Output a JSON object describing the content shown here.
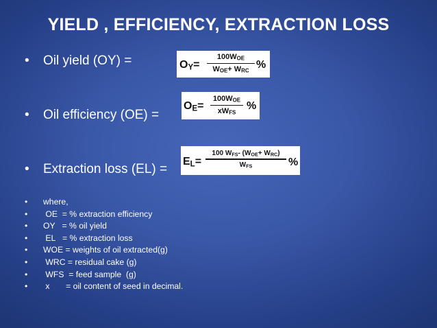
{
  "title": "YIELD , EFFICIENCY, EXTRACTION LOSS",
  "bullets": [
    {
      "label": "Oil yield (OY) ="
    },
    {
      "label": "Oil efficiency (OE) ="
    },
    {
      "label": "Extraction loss (EL) ="
    }
  ],
  "formulas": {
    "oy": {
      "lhs_main": "O",
      "lhs_sub": "Y",
      "eq": "=",
      "num_main": "100W",
      "num_sub": "OE",
      "den_a": "W",
      "den_a_sub": "OE",
      "den_plus": "+ W",
      "den_b_sub": "RC",
      "pct": "%"
    },
    "oe": {
      "lhs_main": "O",
      "lhs_sub": "E",
      "eq": "=",
      "num_main": "100W",
      "num_sub": "OE",
      "den_main": "xW",
      "den_sub": "FS",
      "pct": "%"
    },
    "el": {
      "lhs_main": "E",
      "lhs_sub": "L",
      "eq": "=",
      "num_lead": "100  W",
      "num_lead_sub": "FS",
      "num_mid": "- (W",
      "num_mid_sub": "OE",
      "num_plus": "+ W",
      "num_plus_sub": "RC",
      "num_close": ")",
      "den_main": "W",
      "den_sub": "FS",
      "pct": "%"
    }
  },
  "definitions": [
    {
      "bullet": "•",
      "text": "where,"
    },
    {
      "bullet": "•",
      "text": " OE  = % extraction efficiency"
    },
    {
      "bullet": "•",
      "text": "OY   = % oil yield"
    },
    {
      "bullet": "•",
      "text": " EL   = % extraction loss"
    },
    {
      "bullet": "•",
      "text": "WOE = weights of oil extracted(g)"
    },
    {
      "bullet": "•",
      "text": " WRC = residual cake (g)"
    },
    {
      "bullet": "•",
      "text": " WFS  = feed sample  (g)"
    },
    {
      "bullet": "•",
      "text": " x       = oil content of seed in decimal."
    }
  ],
  "bullet_symbol": "•"
}
